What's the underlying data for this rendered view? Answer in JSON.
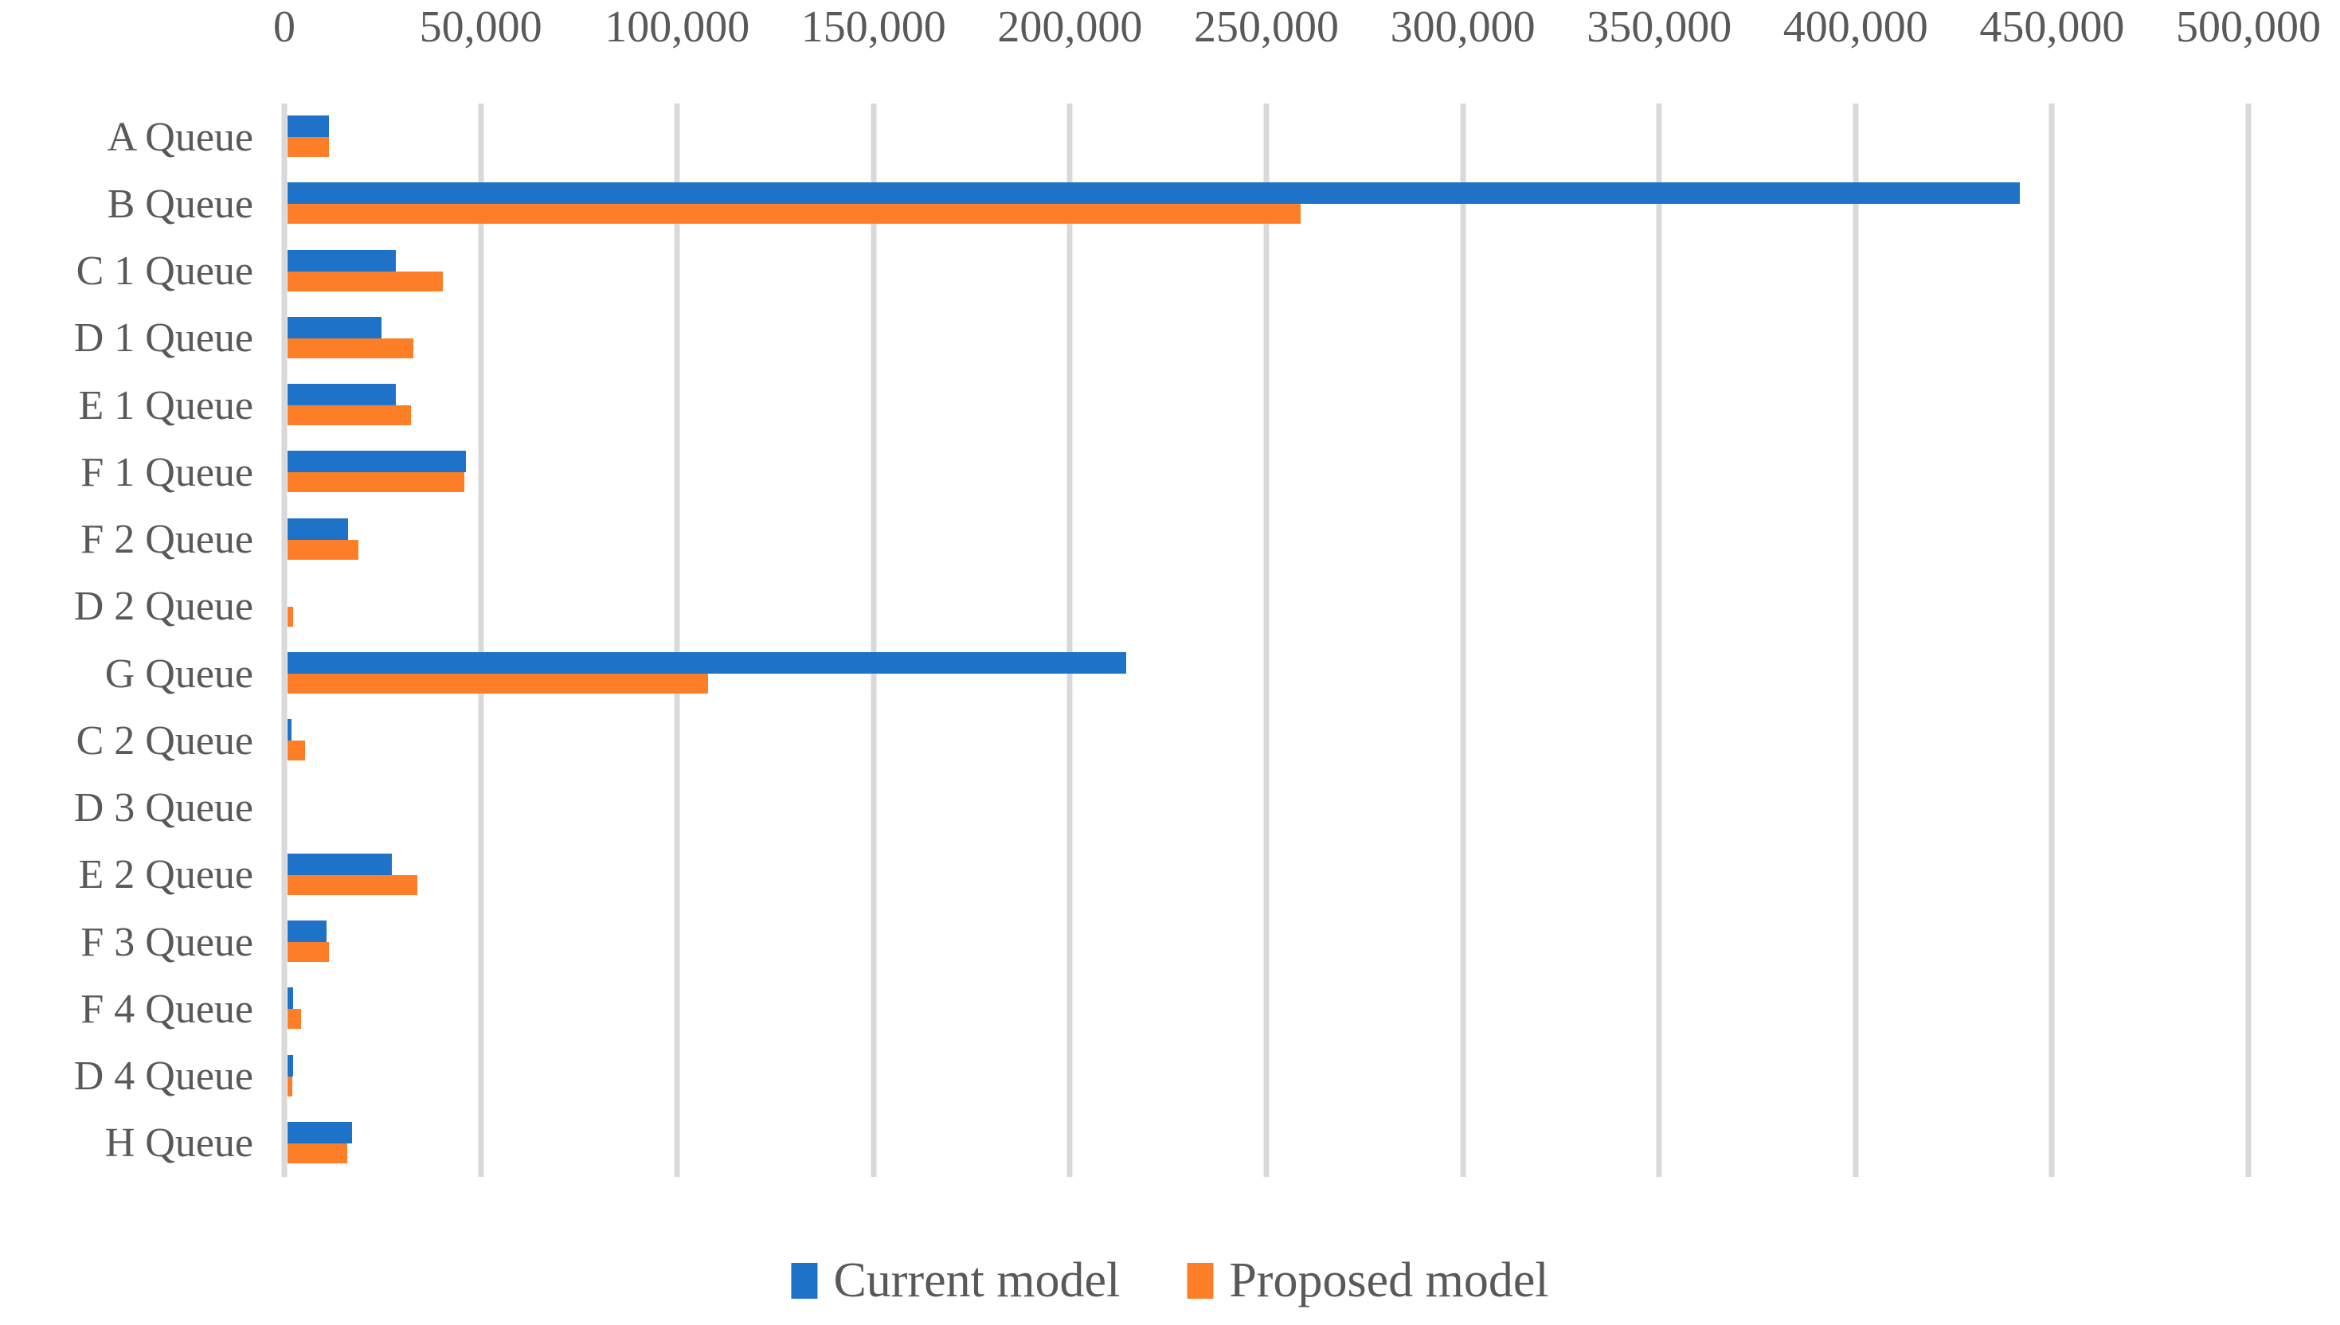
{
  "chart_data": {
    "type": "bar",
    "orientation": "horizontal",
    "title": "",
    "categories": [
      "A Queue",
      "B Queue",
      "C 1 Queue",
      "D 1 Queue",
      "E 1 Queue",
      "F 1 Queue",
      "F 2 Queue",
      "D 2 Queue",
      "G Queue",
      "C 2 Queue",
      "D 3 Queue",
      "E 2 Queue",
      "F 3 Queue",
      "F 4 Queue",
      "D 4 Queue",
      "H Queue"
    ],
    "series": [
      {
        "name": "Current model",
        "color": "#1E73C8",
        "values": [
          10500,
          441000,
          27500,
          24000,
          27500,
          45500,
          15500,
          0,
          213500,
          1000,
          0,
          26500,
          10000,
          1500,
          1500,
          16500
        ]
      },
      {
        "name": "Proposed model",
        "color": "#FD7E27",
        "values": [
          10500,
          258000,
          39500,
          32000,
          31500,
          45000,
          18000,
          1500,
          107000,
          4500,
          0,
          33000,
          10500,
          3500,
          1300,
          15300
        ]
      }
    ],
    "x_axis": {
      "min": 0,
      "max": 500000,
      "tick_interval": 50000,
      "tick_labels": [
        "0",
        "50,000",
        "100,000",
        "150,000",
        "200,000",
        "250,000",
        "300,000",
        "350,000",
        "400,000",
        "450,000",
        "500,000"
      ]
    },
    "legend": {
      "position": "bottom",
      "entries": [
        "Current model",
        "Proposed model"
      ]
    },
    "grid": "vertical-gridlines",
    "styles": {
      "text_color": "#595959",
      "gridline_color": "#D9D9D9"
    }
  }
}
